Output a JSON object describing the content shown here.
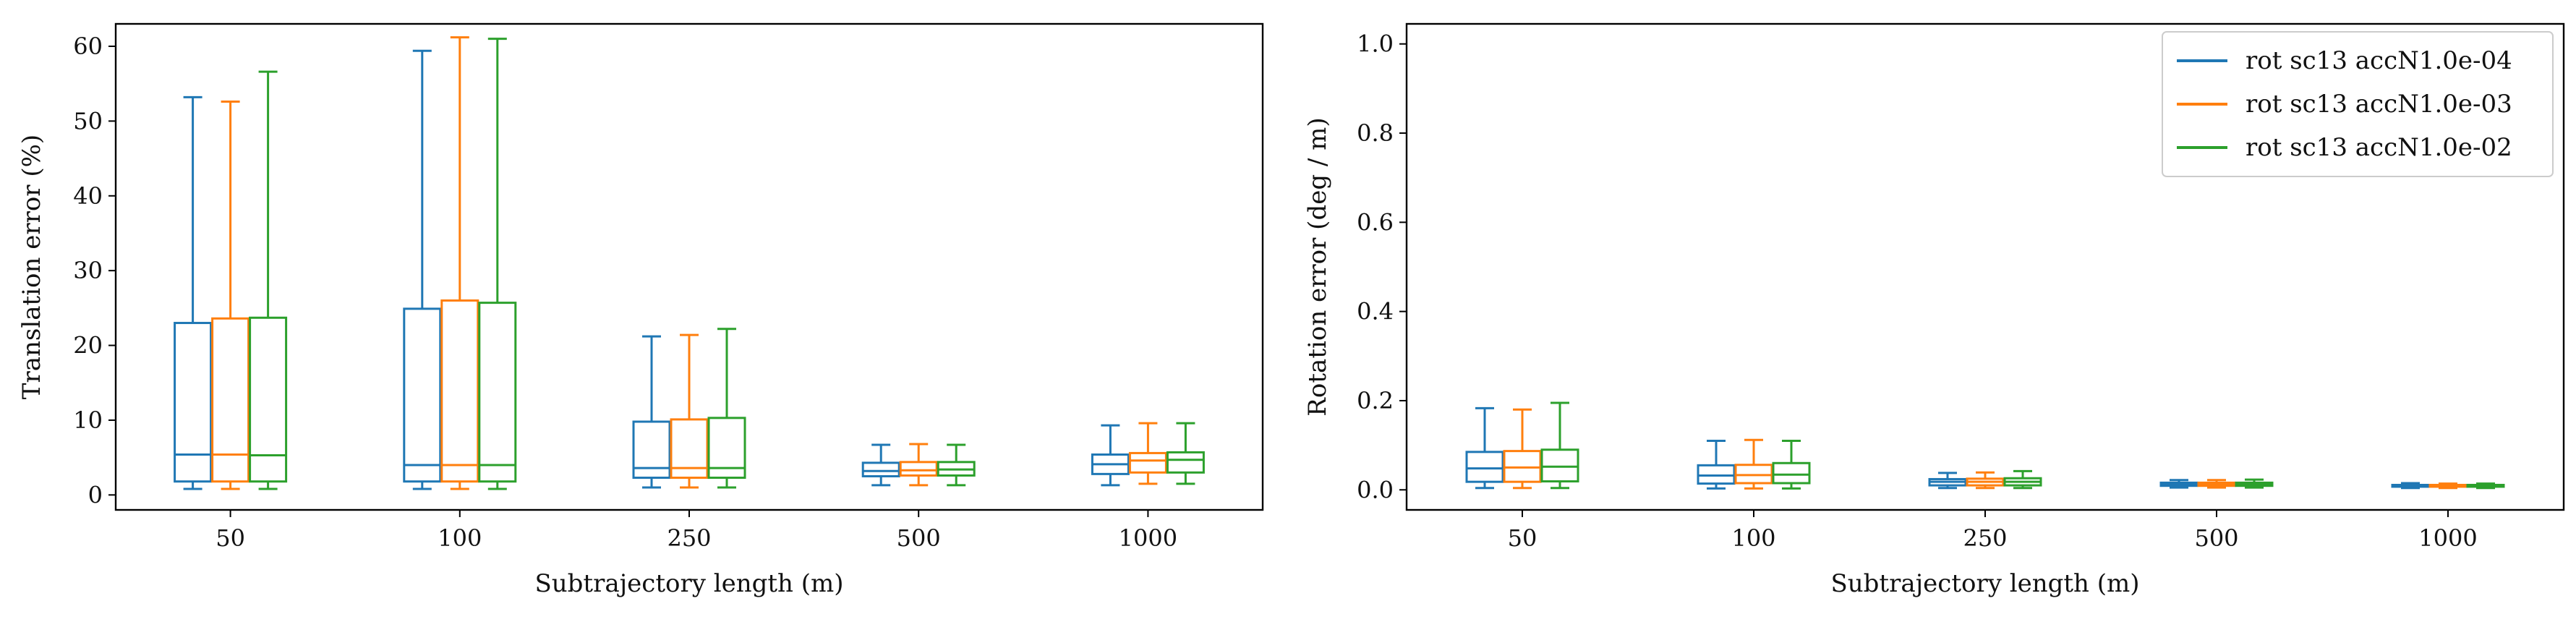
{
  "chart_data": [
    {
      "type": "box",
      "xlabel": "Subtrajectory length (m)",
      "ylabel": "Translation error (%)",
      "categories": [
        "50",
        "100",
        "250",
        "500",
        "1000"
      ],
      "ylim": [
        -2,
        63
      ],
      "yticks": [
        "0",
        "10",
        "20",
        "30",
        "40",
        "50",
        "60"
      ],
      "ytick_values": [
        0,
        10,
        20,
        30,
        40,
        50,
        60
      ],
      "grid": false,
      "series": [
        {
          "name": "rot sc13 accN1.0e-04",
          "color": "#1f77b4",
          "boxes": [
            {
              "whislo": 0.8,
              "q1": 1.8,
              "med": 5.4,
              "q3": 23.0,
              "whishi": 53.2
            },
            {
              "whislo": 0.8,
              "q1": 1.8,
              "med": 4.0,
              "q3": 24.9,
              "whishi": 59.4
            },
            {
              "whislo": 1.0,
              "q1": 2.3,
              "med": 3.6,
              "q3": 9.8,
              "whishi": 21.2
            },
            {
              "whislo": 1.3,
              "q1": 2.5,
              "med": 3.2,
              "q3": 4.3,
              "whishi": 6.7
            },
            {
              "whislo": 1.3,
              "q1": 2.8,
              "med": 4.1,
              "q3": 5.4,
              "whishi": 9.3
            }
          ]
        },
        {
          "name": "rot sc13 accN1.0e-03",
          "color": "#ff7f0e",
          "boxes": [
            {
              "whislo": 0.8,
              "q1": 1.8,
              "med": 5.4,
              "q3": 23.6,
              "whishi": 52.6
            },
            {
              "whislo": 0.8,
              "q1": 1.8,
              "med": 4.0,
              "q3": 26.0,
              "whishi": 61.2
            },
            {
              "whislo": 1.0,
              "q1": 2.3,
              "med": 3.6,
              "q3": 10.1,
              "whishi": 21.4
            },
            {
              "whislo": 1.3,
              "q1": 2.6,
              "med": 3.3,
              "q3": 4.4,
              "whishi": 6.8
            },
            {
              "whislo": 1.5,
              "q1": 3.0,
              "med": 4.6,
              "q3": 5.6,
              "whishi": 9.6
            }
          ]
        },
        {
          "name": "rot sc13 accN1.0e-02",
          "color": "#2ca02c",
          "boxes": [
            {
              "whislo": 0.8,
              "q1": 1.8,
              "med": 5.3,
              "q3": 23.7,
              "whishi": 56.6
            },
            {
              "whislo": 0.8,
              "q1": 1.8,
              "med": 4.0,
              "q3": 25.7,
              "whishi": 61.0
            },
            {
              "whislo": 1.0,
              "q1": 2.3,
              "med": 3.6,
              "q3": 10.3,
              "whishi": 22.2
            },
            {
              "whislo": 1.3,
              "q1": 2.6,
              "med": 3.4,
              "q3": 4.4,
              "whishi": 6.7
            },
            {
              "whislo": 1.5,
              "q1": 3.0,
              "med": 4.7,
              "q3": 5.7,
              "whishi": 9.6
            }
          ]
        }
      ]
    },
    {
      "type": "box",
      "xlabel": "Subtrajectory length (m)",
      "ylabel": "Rotation error (deg / m)",
      "categories": [
        "50",
        "100",
        "250",
        "500",
        "1000"
      ],
      "ylim": [
        -0.045,
        1.045
      ],
      "yticks": [
        "0.0",
        "0.2",
        "0.4",
        "0.6",
        "0.8",
        "1.0"
      ],
      "ytick_values": [
        0.0,
        0.2,
        0.4,
        0.6,
        0.8,
        1.0
      ],
      "grid": false,
      "legend_position": "top-right",
      "series": [
        {
          "name": "rot sc13 accN1.0e-04",
          "color": "#1f77b4",
          "boxes": [
            {
              "whislo": 0.004,
              "q1": 0.018,
              "med": 0.048,
              "q3": 0.085,
              "whishi": 0.183
            },
            {
              "whislo": 0.003,
              "q1": 0.014,
              "med": 0.032,
              "q3": 0.055,
              "whishi": 0.11
            },
            {
              "whislo": 0.004,
              "q1": 0.01,
              "med": 0.018,
              "q3": 0.024,
              "whishi": 0.038
            },
            {
              "whislo": 0.005,
              "q1": 0.009,
              "med": 0.013,
              "q3": 0.016,
              "whishi": 0.022
            },
            {
              "whislo": 0.004,
              "q1": 0.007,
              "med": 0.009,
              "q3": 0.011,
              "whishi": 0.015
            }
          ]
        },
        {
          "name": "rot sc13 accN1.0e-03",
          "color": "#ff7f0e",
          "boxes": [
            {
              "whislo": 0.004,
              "q1": 0.018,
              "med": 0.05,
              "q3": 0.087,
              "whishi": 0.18
            },
            {
              "whislo": 0.003,
              "q1": 0.015,
              "med": 0.033,
              "q3": 0.056,
              "whishi": 0.112
            },
            {
              "whislo": 0.004,
              "q1": 0.01,
              "med": 0.018,
              "q3": 0.025,
              "whishi": 0.039
            },
            {
              "whislo": 0.005,
              "q1": 0.009,
              "med": 0.013,
              "q3": 0.016,
              "whishi": 0.022
            },
            {
              "whislo": 0.004,
              "q1": 0.007,
              "med": 0.009,
              "q3": 0.011,
              "whishi": 0.014
            }
          ]
        },
        {
          "name": "rot sc13 accN1.0e-02",
          "color": "#2ca02c",
          "boxes": [
            {
              "whislo": 0.004,
              "q1": 0.019,
              "med": 0.052,
              "q3": 0.09,
              "whishi": 0.195
            },
            {
              "whislo": 0.003,
              "q1": 0.015,
              "med": 0.034,
              "q3": 0.06,
              "whishi": 0.11
            },
            {
              "whislo": 0.004,
              "q1": 0.01,
              "med": 0.018,
              "q3": 0.026,
              "whishi": 0.042
            },
            {
              "whislo": 0.005,
              "q1": 0.009,
              "med": 0.013,
              "q3": 0.016,
              "whishi": 0.023
            },
            {
              "whislo": 0.004,
              "q1": 0.007,
              "med": 0.009,
              "q3": 0.011,
              "whishi": 0.014
            }
          ]
        }
      ]
    }
  ]
}
